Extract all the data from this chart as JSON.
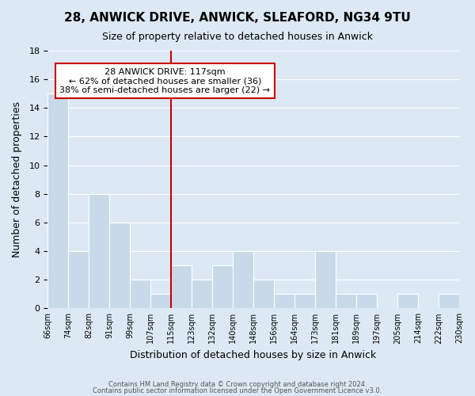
{
  "title1": "28, ANWICK DRIVE, ANWICK, SLEAFORD, NG34 9TU",
  "title2": "Size of property relative to detached houses in Anwick",
  "xlabel": "Distribution of detached houses by size in Anwick",
  "ylabel": "Number of detached properties",
  "bin_labels": [
    "66sqm",
    "74sqm",
    "82sqm",
    "91sqm",
    "99sqm",
    "107sqm",
    "115sqm",
    "123sqm",
    "132sqm",
    "140sqm",
    "148sqm",
    "156sqm",
    "164sqm",
    "173sqm",
    "181sqm",
    "189sqm",
    "197sqm",
    "205sqm",
    "214sqm",
    "222sqm",
    "230sqm"
  ],
  "bar_heights": [
    15,
    4,
    8,
    6,
    2,
    1,
    3,
    2,
    3,
    4,
    2,
    1,
    1,
    4,
    1,
    1,
    0,
    1,
    0,
    1
  ],
  "bar_color": "#c8d9e8",
  "bar_edge_color": "#ffffff",
  "grid_color": "#ffffff",
  "background_color": "#dce9f5",
  "reference_line_x": 6,
  "reference_line_color": "#cc0000",
  "annotation_text": "28 ANWICK DRIVE: 117sqm\n← 62% of detached houses are smaller (36)\n38% of semi-detached houses are larger (22) →",
  "annotation_box_color": "#ffffff",
  "annotation_box_edge_color": "#cc0000",
  "ylim": [
    0,
    18
  ],
  "yticks": [
    0,
    2,
    4,
    6,
    8,
    10,
    12,
    14,
    16,
    18
  ],
  "footer1": "Contains HM Land Registry data © Crown copyright and database right 2024.",
  "footer2": "Contains public sector information licensed under the Open Government Licence v3.0."
}
